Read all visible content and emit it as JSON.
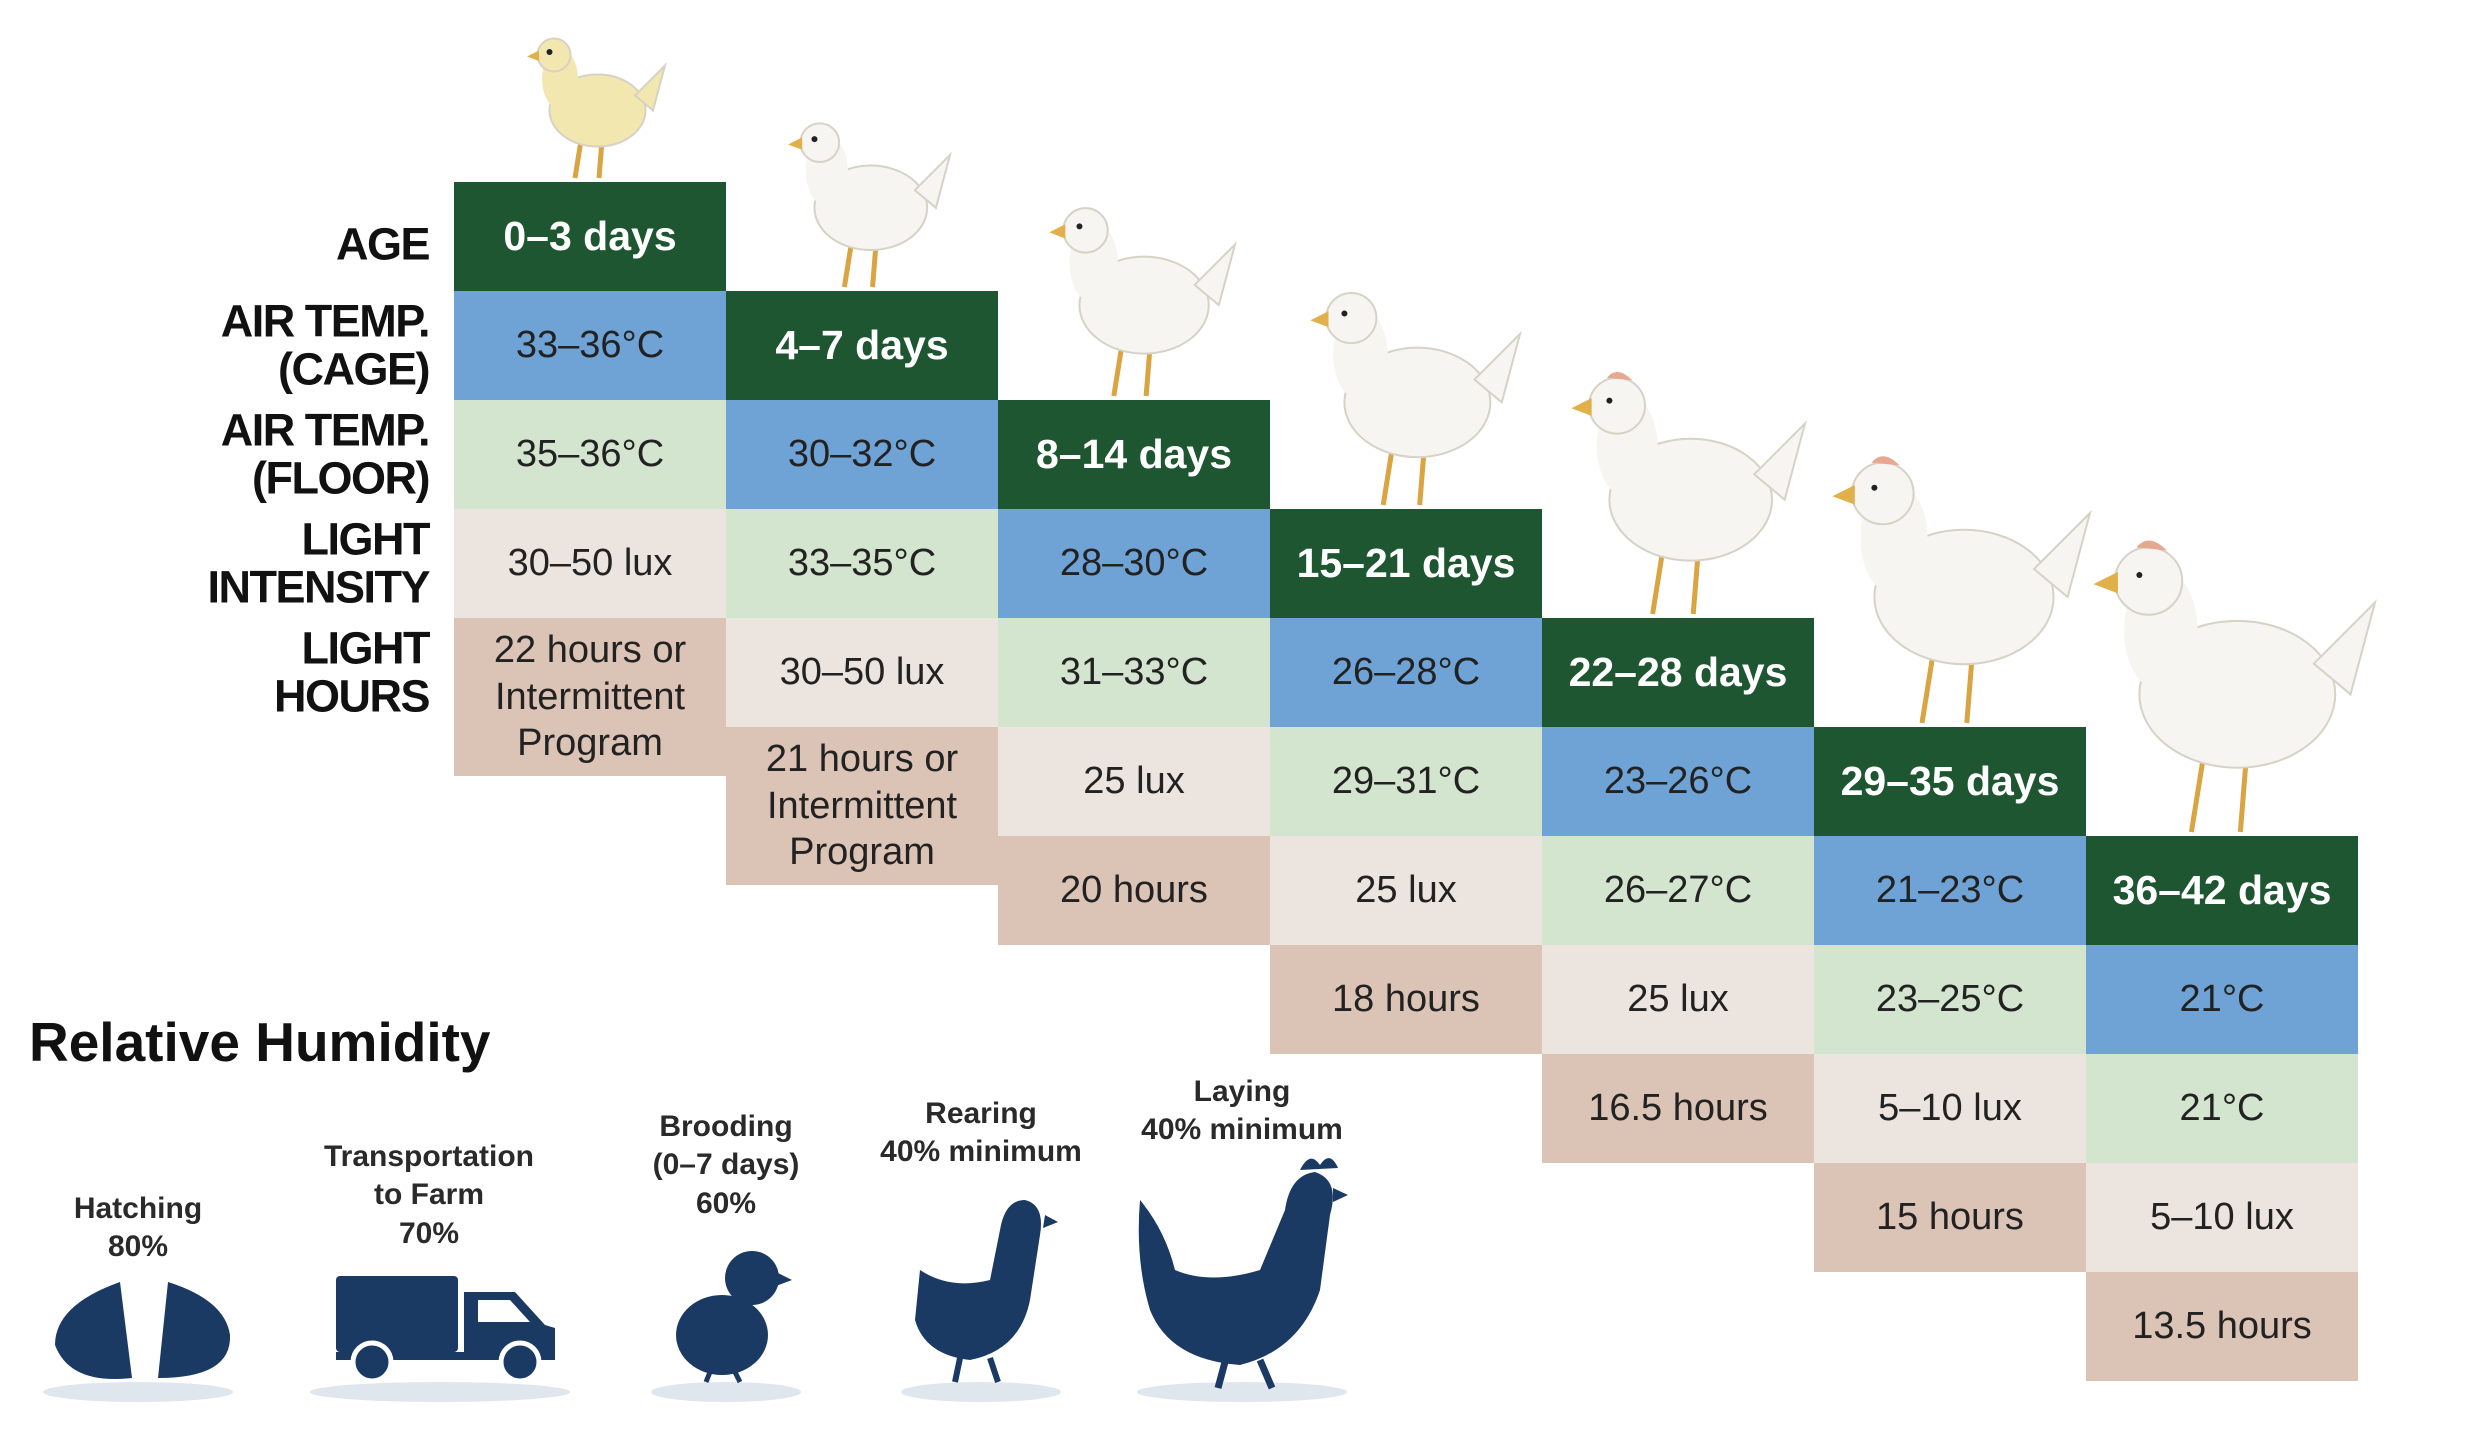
{
  "row_labels": [
    [
      "AGE"
    ],
    [
      "AIR TEMP.",
      "(CAGE)"
    ],
    [
      "AIR TEMP.",
      "(FLOOR)"
    ],
    [
      "LIGHT",
      "INTENSITY"
    ],
    [
      "LIGHT",
      "HOURS"
    ]
  ],
  "stages": [
    {
      "age": "0–3 days",
      "cage_temp": "33–36°C",
      "floor_temp": "35–36°C",
      "light_intensity": "30–50 lux",
      "light_hours": [
        "22 hours or",
        "Intermittent",
        "Program"
      ]
    },
    {
      "age": "4–7 days",
      "cage_temp": "30–32°C",
      "floor_temp": "33–35°C",
      "light_intensity": "30–50 lux",
      "light_hours": [
        "21 hours or",
        "Intermittent",
        "Program"
      ]
    },
    {
      "age": "8–14 days",
      "cage_temp": "28–30°C",
      "floor_temp": "31–33°C",
      "light_intensity": "25 lux",
      "light_hours": [
        "20 hours"
      ]
    },
    {
      "age": "15–21 days",
      "cage_temp": "26–28°C",
      "floor_temp": "29–31°C",
      "light_intensity": "25 lux",
      "light_hours": [
        "18 hours"
      ]
    },
    {
      "age": "22–28 days",
      "cage_temp": "23–26°C",
      "floor_temp": "26–27°C",
      "light_intensity": "25 lux",
      "light_hours": [
        "16.5 hours"
      ]
    },
    {
      "age": "29–35 days",
      "cage_temp": "21–23°C",
      "floor_temp": "23–25°C",
      "light_intensity": "5–10 lux",
      "light_hours": [
        "15 hours"
      ]
    },
    {
      "age": "36–42 days",
      "cage_temp": "21°C",
      "floor_temp": "21°C",
      "light_intensity": "5–10 lux",
      "light_hours": [
        "13.5 hours"
      ]
    }
  ],
  "humidity": {
    "title": "Relative Humidity",
    "items": [
      {
        "label": [
          "Hatching",
          "80%"
        ]
      },
      {
        "label": [
          "Transportation",
          "to Farm",
          "70%"
        ]
      },
      {
        "label": [
          "Brooding",
          "(0–7 days)",
          "60%"
        ]
      },
      {
        "label": [
          "Rearing",
          "40% minimum"
        ]
      },
      {
        "label": [
          "Laying",
          "40% minimum"
        ]
      }
    ]
  }
}
